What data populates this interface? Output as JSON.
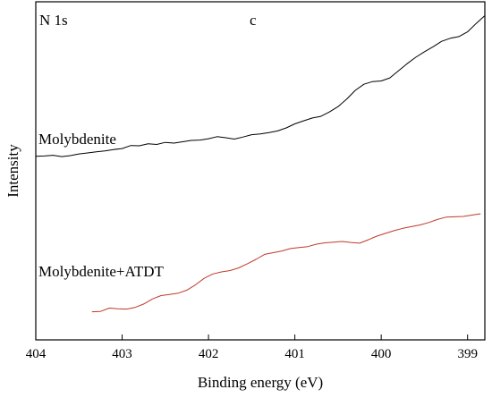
{
  "chart_data": {
    "type": "line",
    "xlabel": "Binding energy (eV)",
    "ylabel": "Intensity",
    "xlim": [
      404,
      398.8
    ],
    "x_reversed": true,
    "ylim": [
      0,
      100
    ],
    "y_ticks_labeled": false,
    "x_ticks": [
      404,
      403,
      402,
      401,
      400,
      399
    ],
    "x_tick_labels": [
      "404",
      "403",
      "402",
      "401",
      "400",
      "399"
    ],
    "grid": false,
    "annotations": [
      {
        "id": "panel-label",
        "text": "c"
      },
      {
        "id": "region-label",
        "text": "N 1s"
      },
      {
        "id": "series-label-0",
        "text": "Molybdenite"
      },
      {
        "id": "series-label-1",
        "text": "Molybdenite+ATDT"
      }
    ],
    "series": [
      {
        "name": "Molybdenite",
        "color": "#000000",
        "x": [
          404.0,
          403.9,
          403.8,
          403.7,
          403.6,
          403.5,
          403.4,
          403.3,
          403.2,
          403.1,
          403.0,
          402.9,
          402.8,
          402.7,
          402.6,
          402.5,
          402.4,
          402.3,
          402.2,
          402.1,
          402.0,
          401.9,
          401.8,
          401.7,
          401.6,
          401.5,
          401.4,
          401.3,
          401.2,
          401.1,
          401.0,
          400.9,
          400.8,
          400.7,
          400.6,
          400.5,
          400.4,
          400.3,
          400.2,
          400.1,
          400.0,
          399.9,
          399.8,
          399.7,
          399.6,
          399.5,
          399.4,
          399.3,
          399.2,
          399.1,
          399.0,
          398.9,
          398.8
        ],
        "values": [
          54.3,
          54.4,
          54.6,
          54.2,
          54.5,
          55.0,
          55.3,
          55.6,
          55.9,
          56.3,
          56.6,
          57.5,
          57.4,
          58.0,
          57.8,
          58.4,
          58.2,
          58.6,
          59.0,
          59.1,
          59.5,
          60.1,
          59.8,
          59.4,
          60.0,
          60.7,
          60.9,
          61.3,
          61.8,
          62.7,
          63.9,
          64.8,
          65.6,
          66.1,
          67.4,
          69.0,
          71.2,
          73.8,
          75.6,
          76.4,
          76.6,
          77.5,
          79.6,
          81.7,
          83.6,
          85.2,
          86.7,
          88.3,
          89.2,
          89.7,
          91.1,
          93.6,
          95.9
        ]
      },
      {
        "name": "Molybdenite+ATDT",
        "color": "#c0392b",
        "x": [
          403.35,
          403.25,
          403.15,
          403.05,
          402.95,
          402.85,
          402.75,
          402.65,
          402.55,
          402.45,
          402.35,
          402.25,
          402.15,
          402.05,
          401.95,
          401.85,
          401.75,
          401.65,
          401.55,
          401.45,
          401.35,
          401.25,
          401.15,
          401.05,
          400.95,
          400.85,
          400.75,
          400.65,
          400.55,
          400.45,
          400.35,
          400.25,
          400.15,
          400.05,
          399.95,
          399.85,
          399.75,
          399.65,
          399.55,
          399.45,
          399.35,
          399.25,
          399.15,
          399.05,
          398.95,
          398.85
        ],
        "values": [
          8.3,
          8.4,
          9.4,
          9.2,
          9.1,
          9.6,
          10.6,
          12.1,
          13.1,
          13.4,
          13.8,
          14.7,
          16.3,
          18.2,
          19.5,
          20.1,
          20.5,
          21.3,
          22.5,
          23.8,
          25.3,
          25.8,
          26.3,
          27.0,
          27.3,
          27.6,
          28.3,
          28.7,
          28.9,
          29.1,
          28.8,
          28.6,
          29.6,
          30.7,
          31.5,
          32.3,
          33.0,
          33.5,
          34.0,
          34.7,
          35.6,
          36.3,
          36.4,
          36.5,
          36.9,
          37.3
        ]
      }
    ]
  }
}
